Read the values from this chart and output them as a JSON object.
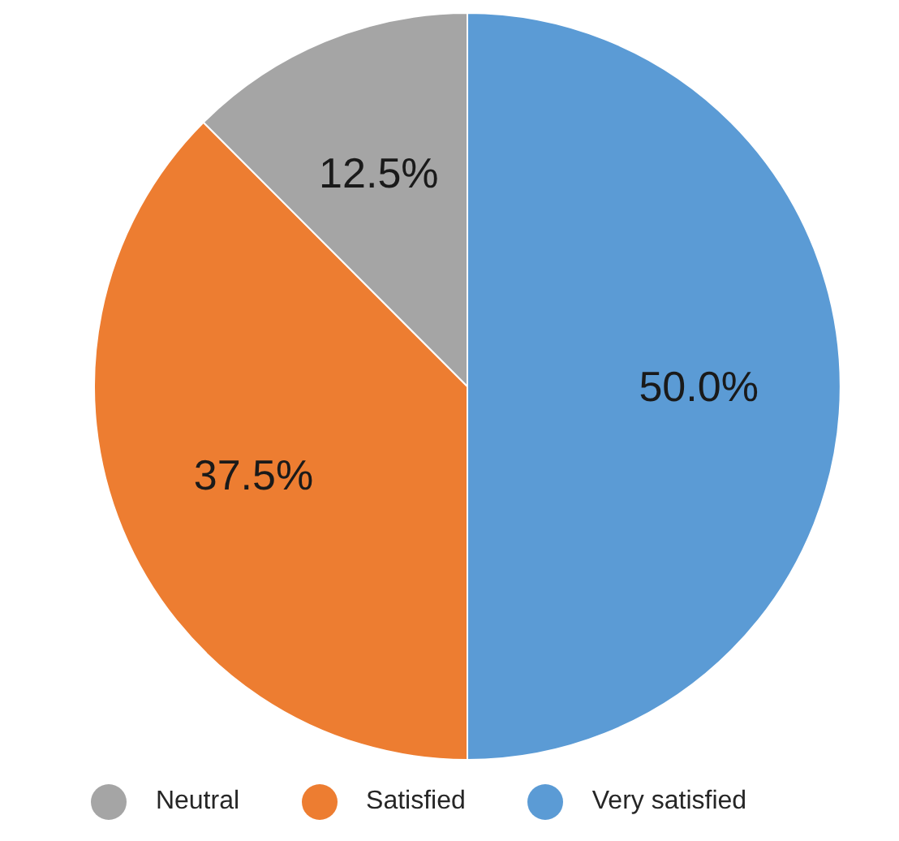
{
  "chart_data": {
    "type": "pie",
    "categories": [
      "Very satisfied",
      "Satisfied",
      "Neutral"
    ],
    "values": [
      50.0,
      37.5,
      12.5
    ],
    "colors": [
      "#5b9bd5",
      "#ed7d31",
      "#a5a5a5"
    ],
    "value_labels": [
      "50.0%",
      "37.5%",
      "12.5%"
    ],
    "legend": "bottom"
  }
}
